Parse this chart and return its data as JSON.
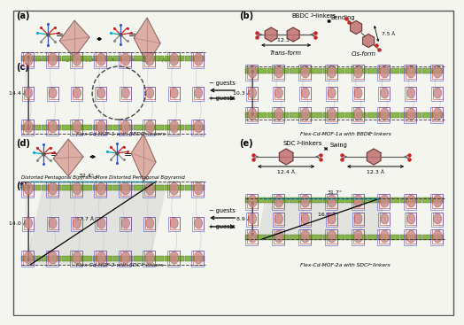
{
  "bg_color": "#f5f5f0",
  "border_color": "#333333",
  "panel_labels": [
    "(a)",
    "(b)",
    "(c)",
    "(d)",
    "(e)",
    "(f)"
  ],
  "panel_label_fontsize": 7,
  "bipyramid_color": "#d4968c",
  "bipyramid_edge_color": "#7a5050",
  "bipyramid_line_color": "#9a7070",
  "rod_blue": "#3355cc",
  "rod_red": "#cc2222",
  "rod_cyan": "#00aacc",
  "rod_gray": "#888888",
  "rod_darkgray": "#555555",
  "benzene_color": "#c07070",
  "benzene_edge": "#553333",
  "carboxyl_color": "#cc2222",
  "green_layer": "#77aa33",
  "green_layer_edge": "#446611",
  "pink_node": "#cc8888",
  "pink_node_edge": "#996666",
  "red_outline": "#cc3333",
  "blue_outline": "#3344cc",
  "cyan_line": "#00aacc",
  "gray_wave": "#aaaaaa",
  "dashed_color": "#333333",
  "arrow_color": "#333333",
  "text_color": "#111111",
  "italic_color": "#111111",
  "measurement_color": "#111111",
  "shadow_color": "#cccccc",
  "texts": {
    "dist_bipyramid": "Distorted Pentagonal Bipyramid",
    "more_dist_bipyramid": "More Distorted Pentagonal Bipyramid",
    "bbdc_linkers": "BBDC",
    "bbdc_super": "2−",
    "bbdc_sub": " linkers",
    "sdc_linkers": "SDC",
    "sdc_super": "2−",
    "sdc_sub": " linkers",
    "trans": "Trans-form",
    "cis": "Cis-form",
    "bending": "Bending",
    "swing": "Swing",
    "minus_guests": "− guests",
    "plus_guests": "+ guests",
    "mof1_label": "Flex-Cd-MOF-1 with BBDC",
    "mof1a_label": "Flex-Cd-MOF-1a with BBDC",
    "mof2_label": "Flex-Cd-MOF-2 with SDC",
    "mof2a_label": "Flex-Cd-MOF-2a with SDC",
    "super_2m": "2−",
    "linkers_suffix": " linkers",
    "d144": "14.4 Å",
    "d103": "10.3 Å",
    "d123b": "12.3 Å",
    "d75": "7.5 Å",
    "d124": "12.4 Å",
    "d123e": "12.3 Å",
    "d140": "14.0 Å",
    "d177": "17.7 Å",
    "a524": "52.4°",
    "d89": "8.9 Å",
    "d169": "16.9 Å",
    "a317": "31.7°"
  }
}
